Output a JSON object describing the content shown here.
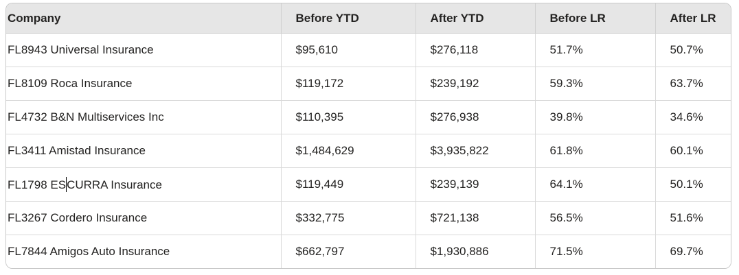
{
  "colors": {
    "header_bg": "#e6e6e6",
    "row_bg": "#ffffff",
    "border": "#d0d0d0",
    "text": "#242322"
  },
  "table": {
    "columns": [
      {
        "key": "company",
        "label": "Company"
      },
      {
        "key": "before_ytd",
        "label": "Before YTD"
      },
      {
        "key": "after_ytd",
        "label": "After YTD"
      },
      {
        "key": "before_lr",
        "label": "Before LR"
      },
      {
        "key": "after_lr",
        "label": "After LR"
      }
    ],
    "rows": [
      {
        "company": "FL8943 Universal Insurance",
        "before_ytd": "$95,610",
        "after_ytd": "$276,118",
        "before_lr": "51.7%",
        "after_lr": "50.7%"
      },
      {
        "company": "FL8109 Roca Insurance",
        "before_ytd": "$119,172",
        "after_ytd": "$239,192",
        "before_lr": "59.3%",
        "after_lr": "63.7%"
      },
      {
        "company": "FL4732 B&N Multiservices Inc",
        "before_ytd": "$110,395",
        "after_ytd": "$276,938",
        "before_lr": "39.8%",
        "after_lr": "34.6%"
      },
      {
        "company": "FL3411 Amistad Insurance",
        "before_ytd": "$1,484,629",
        "after_ytd": "$3,935,822",
        "before_lr": "61.8%",
        "after_lr": "60.1%"
      },
      {
        "company": "FL1798 ESCURRA Insurance",
        "before_ytd": "$119,449",
        "after_ytd": "$239,139",
        "before_lr": "64.1%",
        "after_lr": "50.1%",
        "caret": {
          "col": "company",
          "before": "FL1798 ES",
          "after": "CURRA Insurance"
        }
      },
      {
        "company": "FL3267 Cordero Insurance",
        "before_ytd": "$332,775",
        "after_ytd": "$721,138",
        "before_lr": "56.5%",
        "after_lr": "51.6%"
      },
      {
        "company": "FL7844 Amigos Auto Insurance",
        "before_ytd": "$662,797",
        "after_ytd": "$1,930,886",
        "before_lr": "71.5%",
        "after_lr": "69.7%"
      }
    ]
  }
}
